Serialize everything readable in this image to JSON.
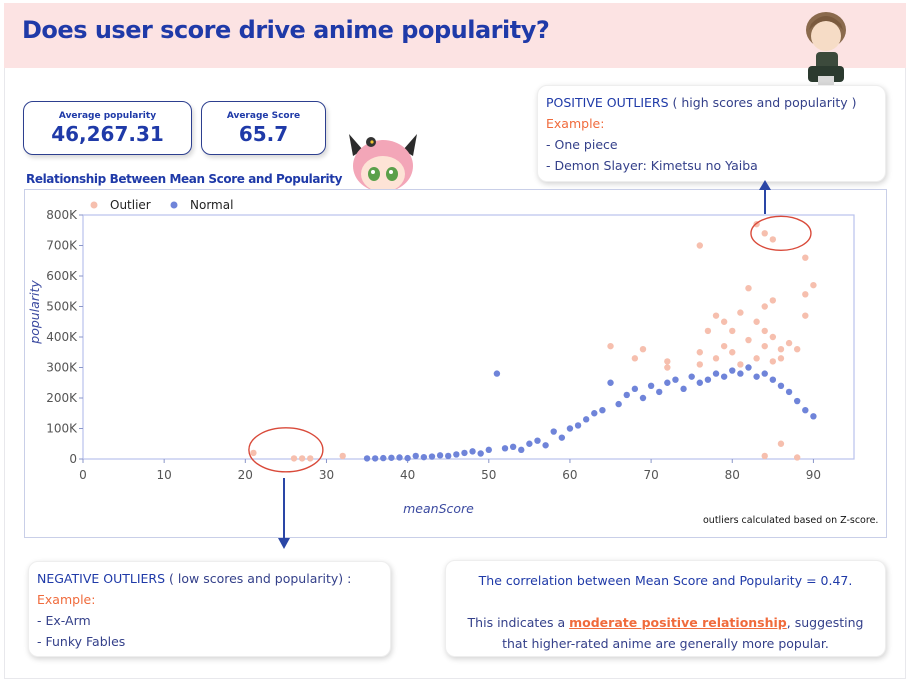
{
  "title": "Does user score drive anime popularity?",
  "kpis": [
    {
      "label": "Average popularity",
      "value": "46,267.31"
    },
    {
      "label": "Average Score",
      "value": "65.7"
    }
  ],
  "chart_subtitle": "Relationship Between Mean Score and Popularity",
  "positive_callout": {
    "head": "POSITIVE OUTLIERS",
    "desc": "( high scores and popularity )",
    "example_label": "Example:",
    "items": [
      "- One piece",
      "- Demon Slayer: Kimetsu no Yaiba"
    ]
  },
  "negative_callout": {
    "head": "NEGATIVE OUTLIERS",
    "desc": "( low scores and popularity) :",
    "example_label": "Example:",
    "items": [
      "- Ex-Arm",
      "- Funky Fables"
    ]
  },
  "correlation": {
    "line1": "The correlation between Mean Score and Popularity = 0.47.",
    "line2_pre": "This indicates a",
    "line2_em": "moderate positive relationship",
    "line2_post": ", suggesting that higher-rated anime are generally more popular."
  },
  "note": "outliers calculated based on Z-score.",
  "colors": {
    "title": "#1f3aa8",
    "normal": "#6f84d9",
    "outlier": "#f6bfae",
    "accent": "#f06b3c",
    "annotation": "#d94a3a",
    "arrow": "#2a46a6"
  },
  "icons": [
    "character-head-icon",
    "character-figure-icon"
  ],
  "chart_data": {
    "type": "scatter",
    "xlabel": "meanScore",
    "ylabel": "popularity",
    "xlim": [
      0,
      95
    ],
    "ylim": [
      0,
      800000
    ],
    "xticks": [
      "0",
      "10",
      "20",
      "30",
      "40",
      "50",
      "60",
      "70",
      "80",
      "90"
    ],
    "yticks": [
      "0",
      "100K",
      "200K",
      "300K",
      "400K",
      "500K",
      "600K",
      "700K",
      "800K"
    ],
    "legend": "top-left",
    "grid": false,
    "series": [
      {
        "name": "Outlier",
        "points": [
          [
            21,
            20000
          ],
          [
            26,
            2000
          ],
          [
            27,
            2000
          ],
          [
            28,
            2000
          ],
          [
            32,
            10000
          ],
          [
            65,
            370000
          ],
          [
            68,
            330000
          ],
          [
            69,
            360000
          ],
          [
            72,
            300000
          ],
          [
            72,
            320000
          ],
          [
            76,
            310000
          ],
          [
            76,
            350000
          ],
          [
            76,
            700000
          ],
          [
            77,
            420000
          ],
          [
            78,
            330000
          ],
          [
            78,
            470000
          ],
          [
            79,
            370000
          ],
          [
            79,
            450000
          ],
          [
            80,
            350000
          ],
          [
            80,
            420000
          ],
          [
            81,
            310000
          ],
          [
            81,
            480000
          ],
          [
            82,
            390000
          ],
          [
            82,
            560000
          ],
          [
            83,
            330000
          ],
          [
            83,
            450000
          ],
          [
            83,
            770000
          ],
          [
            84,
            370000
          ],
          [
            84,
            420000
          ],
          [
            84,
            500000
          ],
          [
            84,
            740000
          ],
          [
            85,
            320000
          ],
          [
            85,
            400000
          ],
          [
            85,
            520000
          ],
          [
            85,
            720000
          ],
          [
            86,
            330000
          ],
          [
            86,
            360000
          ],
          [
            87,
            380000
          ],
          [
            88,
            360000
          ],
          [
            89,
            540000
          ],
          [
            89,
            470000
          ],
          [
            89,
            660000
          ],
          [
            90,
            570000
          ],
          [
            88,
            5000
          ],
          [
            84,
            10000
          ],
          [
            86,
            50000
          ]
        ]
      },
      {
        "name": "Normal",
        "points": [
          [
            35,
            2000
          ],
          [
            36,
            2000
          ],
          [
            37,
            3000
          ],
          [
            38,
            4000
          ],
          [
            39,
            5000
          ],
          [
            40,
            3000
          ],
          [
            41,
            10000
          ],
          [
            42,
            6000
          ],
          [
            43,
            8000
          ],
          [
            44,
            12000
          ],
          [
            45,
            10000
          ],
          [
            46,
            15000
          ],
          [
            47,
            20000
          ],
          [
            48,
            25000
          ],
          [
            49,
            18000
          ],
          [
            50,
            30000
          ],
          [
            51,
            280000
          ],
          [
            52,
            35000
          ],
          [
            53,
            40000
          ],
          [
            54,
            30000
          ],
          [
            55,
            50000
          ],
          [
            56,
            60000
          ],
          [
            57,
            45000
          ],
          [
            58,
            90000
          ],
          [
            59,
            70000
          ],
          [
            60,
            100000
          ],
          [
            61,
            110000
          ],
          [
            62,
            130000
          ],
          [
            63,
            150000
          ],
          [
            64,
            160000
          ],
          [
            65,
            250000
          ],
          [
            66,
            180000
          ],
          [
            67,
            210000
          ],
          [
            68,
            230000
          ],
          [
            69,
            200000
          ],
          [
            70,
            240000
          ],
          [
            71,
            220000
          ],
          [
            72,
            250000
          ],
          [
            73,
            260000
          ],
          [
            74,
            230000
          ],
          [
            75,
            270000
          ],
          [
            76,
            250000
          ],
          [
            77,
            260000
          ],
          [
            78,
            280000
          ],
          [
            79,
            270000
          ],
          [
            80,
            290000
          ],
          [
            81,
            280000
          ],
          [
            82,
            300000
          ],
          [
            83,
            270000
          ],
          [
            84,
            280000
          ],
          [
            85,
            260000
          ],
          [
            86,
            240000
          ],
          [
            87,
            220000
          ],
          [
            88,
            190000
          ],
          [
            89,
            160000
          ],
          [
            90,
            140000
          ]
        ]
      }
    ]
  }
}
